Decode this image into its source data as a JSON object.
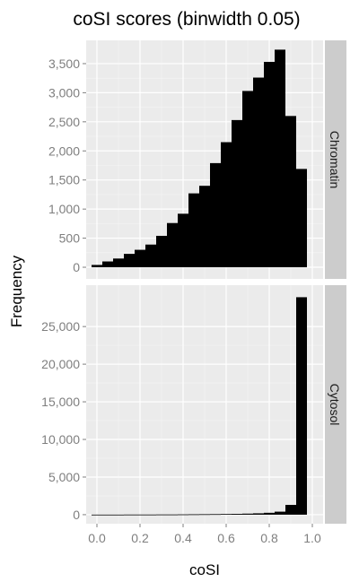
{
  "chart_data": {
    "type": "bar",
    "title": "coSI scores (binwidth 0.05)",
    "xlabel": "coSI",
    "ylabel": "Frequency",
    "x_ticks": [
      "0.0",
      "0.2",
      "0.4",
      "0.6",
      "0.8",
      "1.0"
    ],
    "x_tick_values": [
      0,
      0.2,
      0.4,
      0.6,
      0.8,
      1.0
    ],
    "xlim": [
      -0.05,
      1.05
    ],
    "binwidth": 0.05,
    "bins": [
      0.0,
      0.05,
      0.1,
      0.15,
      0.2,
      0.25,
      0.3,
      0.35,
      0.4,
      0.45,
      0.5,
      0.55,
      0.6,
      0.65,
      0.7,
      0.75,
      0.8,
      0.85,
      0.9,
      0.95
    ],
    "grid": true,
    "bar_color": "#000000",
    "panel_background": "#ebebeb",
    "strip_background": "#cccccc",
    "panels": [
      {
        "name": "Chromatin",
        "ylim": [
          -200,
          3900
        ],
        "y_tick_values": [
          0,
          500,
          1000,
          1500,
          2000,
          2500,
          3000,
          3500
        ],
        "y_ticks": [
          "0",
          "500",
          "1,000",
          "1,500",
          "2,000",
          "2,500",
          "3,000",
          "3,500"
        ],
        "values": [
          40,
          100,
          150,
          230,
          300,
          390,
          540,
          760,
          920,
          1270,
          1400,
          1790,
          2150,
          2530,
          3030,
          3260,
          3530,
          3740,
          2600,
          1690
        ]
      },
      {
        "name": "Cytosol",
        "ylim": [
          -1200,
          30500
        ],
        "y_tick_values": [
          0,
          5000,
          10000,
          15000,
          20000,
          25000
        ],
        "y_ticks": [
          "0",
          "5,000",
          "10,000",
          "15,000",
          "20,000",
          "25,000"
        ],
        "values": [
          10,
          10,
          10,
          20,
          20,
          20,
          30,
          30,
          40,
          50,
          60,
          70,
          90,
          110,
          140,
          180,
          250,
          400,
          1300,
          28900
        ]
      }
    ]
  }
}
